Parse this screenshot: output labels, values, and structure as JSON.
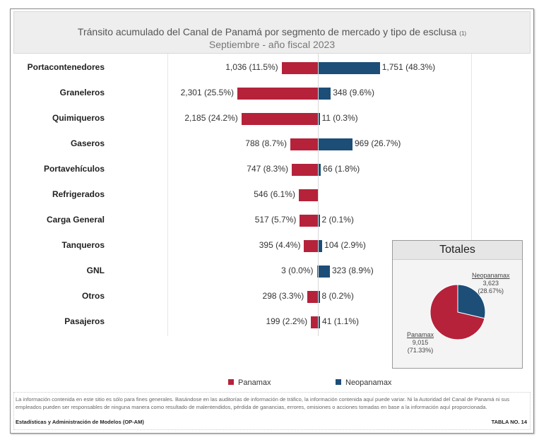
{
  "chart_data": {
    "type": "bar",
    "title": "Tránsito acumulado del Canal de Panamá por segmento de mercado y tipo de esclusa",
    "title_note": "(1)",
    "subtitle": "Septiembre - año fiscal 2023",
    "orientation": "horizontal-diverging",
    "categories": [
      "Portacontenedores",
      "Graneleros",
      "Quimiqueros",
      "Gaseros",
      "Portavehículos",
      "Refrigerados",
      "Carga General",
      "Tanqueros",
      "GNL",
      "Otros",
      "Pasajeros"
    ],
    "series": [
      {
        "name": "Panamax",
        "color": "#b5223a",
        "values": [
          1036,
          2301,
          2185,
          788,
          747,
          546,
          517,
          395,
          3,
          298,
          199
        ],
        "labels": [
          "1,036 (11.5%)",
          "2,301 (25.5%)",
          "2,185 (24.2%)",
          "788 (8.7%)",
          "747 (8.3%)",
          "546 (6.1%)",
          "517 (5.7%)",
          "395 (4.4%)",
          "3 (0.0%)",
          "298 (3.3%)",
          "199 (2.2%)"
        ]
      },
      {
        "name": "Neopanamax",
        "color": "#1c4e78",
        "values": [
          1751,
          348,
          11,
          969,
          66,
          null,
          2,
          104,
          323,
          8,
          41
        ],
        "labels": [
          "1,751 (48.3%)",
          "348 (9.6%)",
          "11 (0.3%)",
          "969 (26.7%)",
          "66 (1.8%)",
          "",
          "2 (0.1%)",
          "104 (2.9%)",
          "323 (8.9%)",
          "8 (0.2%)",
          "41 (1.1%)"
        ]
      }
    ],
    "legend_position": "bottom",
    "grid": false,
    "pie": {
      "type": "pie",
      "title": "Totales",
      "slices": [
        {
          "name": "Neopanamax",
          "value": 3623,
          "value_label": "3,623",
          "pct_label": "(28.67%)",
          "color": "#1c4e78"
        },
        {
          "name": "Panamax",
          "value": 9015,
          "value_label": "9,015",
          "pct_label": "(71.33%)",
          "color": "#b5223a"
        }
      ]
    }
  },
  "footer": {
    "disclaimer": "La información contenida en este sitio es sólo para fines generales. Basándose en las auditorías de información de tráfico, la información contenida aquí puede variar. Ni la Autoridad del Canal de Panamá ni sus empleados pueden ser responsables de ninguna manera como resultado de malentendidos, pérdida de ganancias, errores, omisiones o acciones tomadas en base a la información aquí proporcionada.",
    "source": "Estadísticas y Administración de Modelos (OP-AM)",
    "table": "TABLA NO. 14"
  }
}
